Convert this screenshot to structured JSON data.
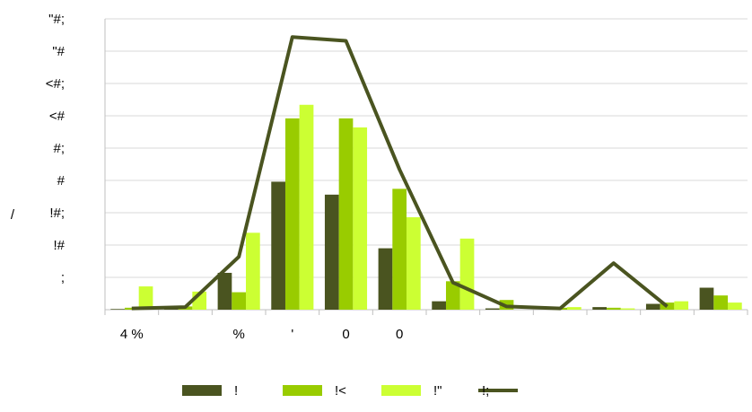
{
  "chart_data": {
    "type": "bar",
    "title": "",
    "ylabel": "/",
    "xlabel": "",
    "ylim": [
      0,
      4.5
    ],
    "ytick_labels": [
      ";",
      "!#",
      "!#;",
      "#",
      "#;",
      "<#",
      "<#;",
      "\"#",
      "\"#;"
    ],
    "categories": [
      "4 %",
      "",
      "%",
      "'",
      "0",
      "0",
      "",
      "",
      "",
      "",
      "",
      ""
    ],
    "series": [
      {
        "name": "!",
        "kind": "bar",
        "color": "#4a5420",
        "values": [
          0.01,
          0.03,
          0.57,
          1.98,
          1.78,
          0.95,
          0.13,
          0.02,
          0.0,
          0.04,
          0.09,
          0.34
        ]
      },
      {
        "name": "!<",
        "kind": "bar",
        "color": "#99cc00",
        "values": [
          0.03,
          0.05,
          0.27,
          2.96,
          2.96,
          1.87,
          0.44,
          0.15,
          0.03,
          0.03,
          0.11,
          0.22
        ]
      },
      {
        "name": "!\"",
        "kind": "bar",
        "color": "#ccff33",
        "values": [
          0.36,
          0.28,
          1.19,
          3.17,
          2.82,
          1.43,
          1.1,
          0.0,
          0.04,
          0.02,
          0.13,
          0.11
        ]
      },
      {
        "name": "!;",
        "kind": "line",
        "color": "#4a5420",
        "values": [
          0.02,
          0.04,
          0.82,
          4.22,
          4.16,
          2.17,
          0.42,
          0.05,
          0.02,
          0.72,
          0.05,
          null
        ]
      }
    ],
    "grid": true,
    "legend_position": "bottom"
  }
}
